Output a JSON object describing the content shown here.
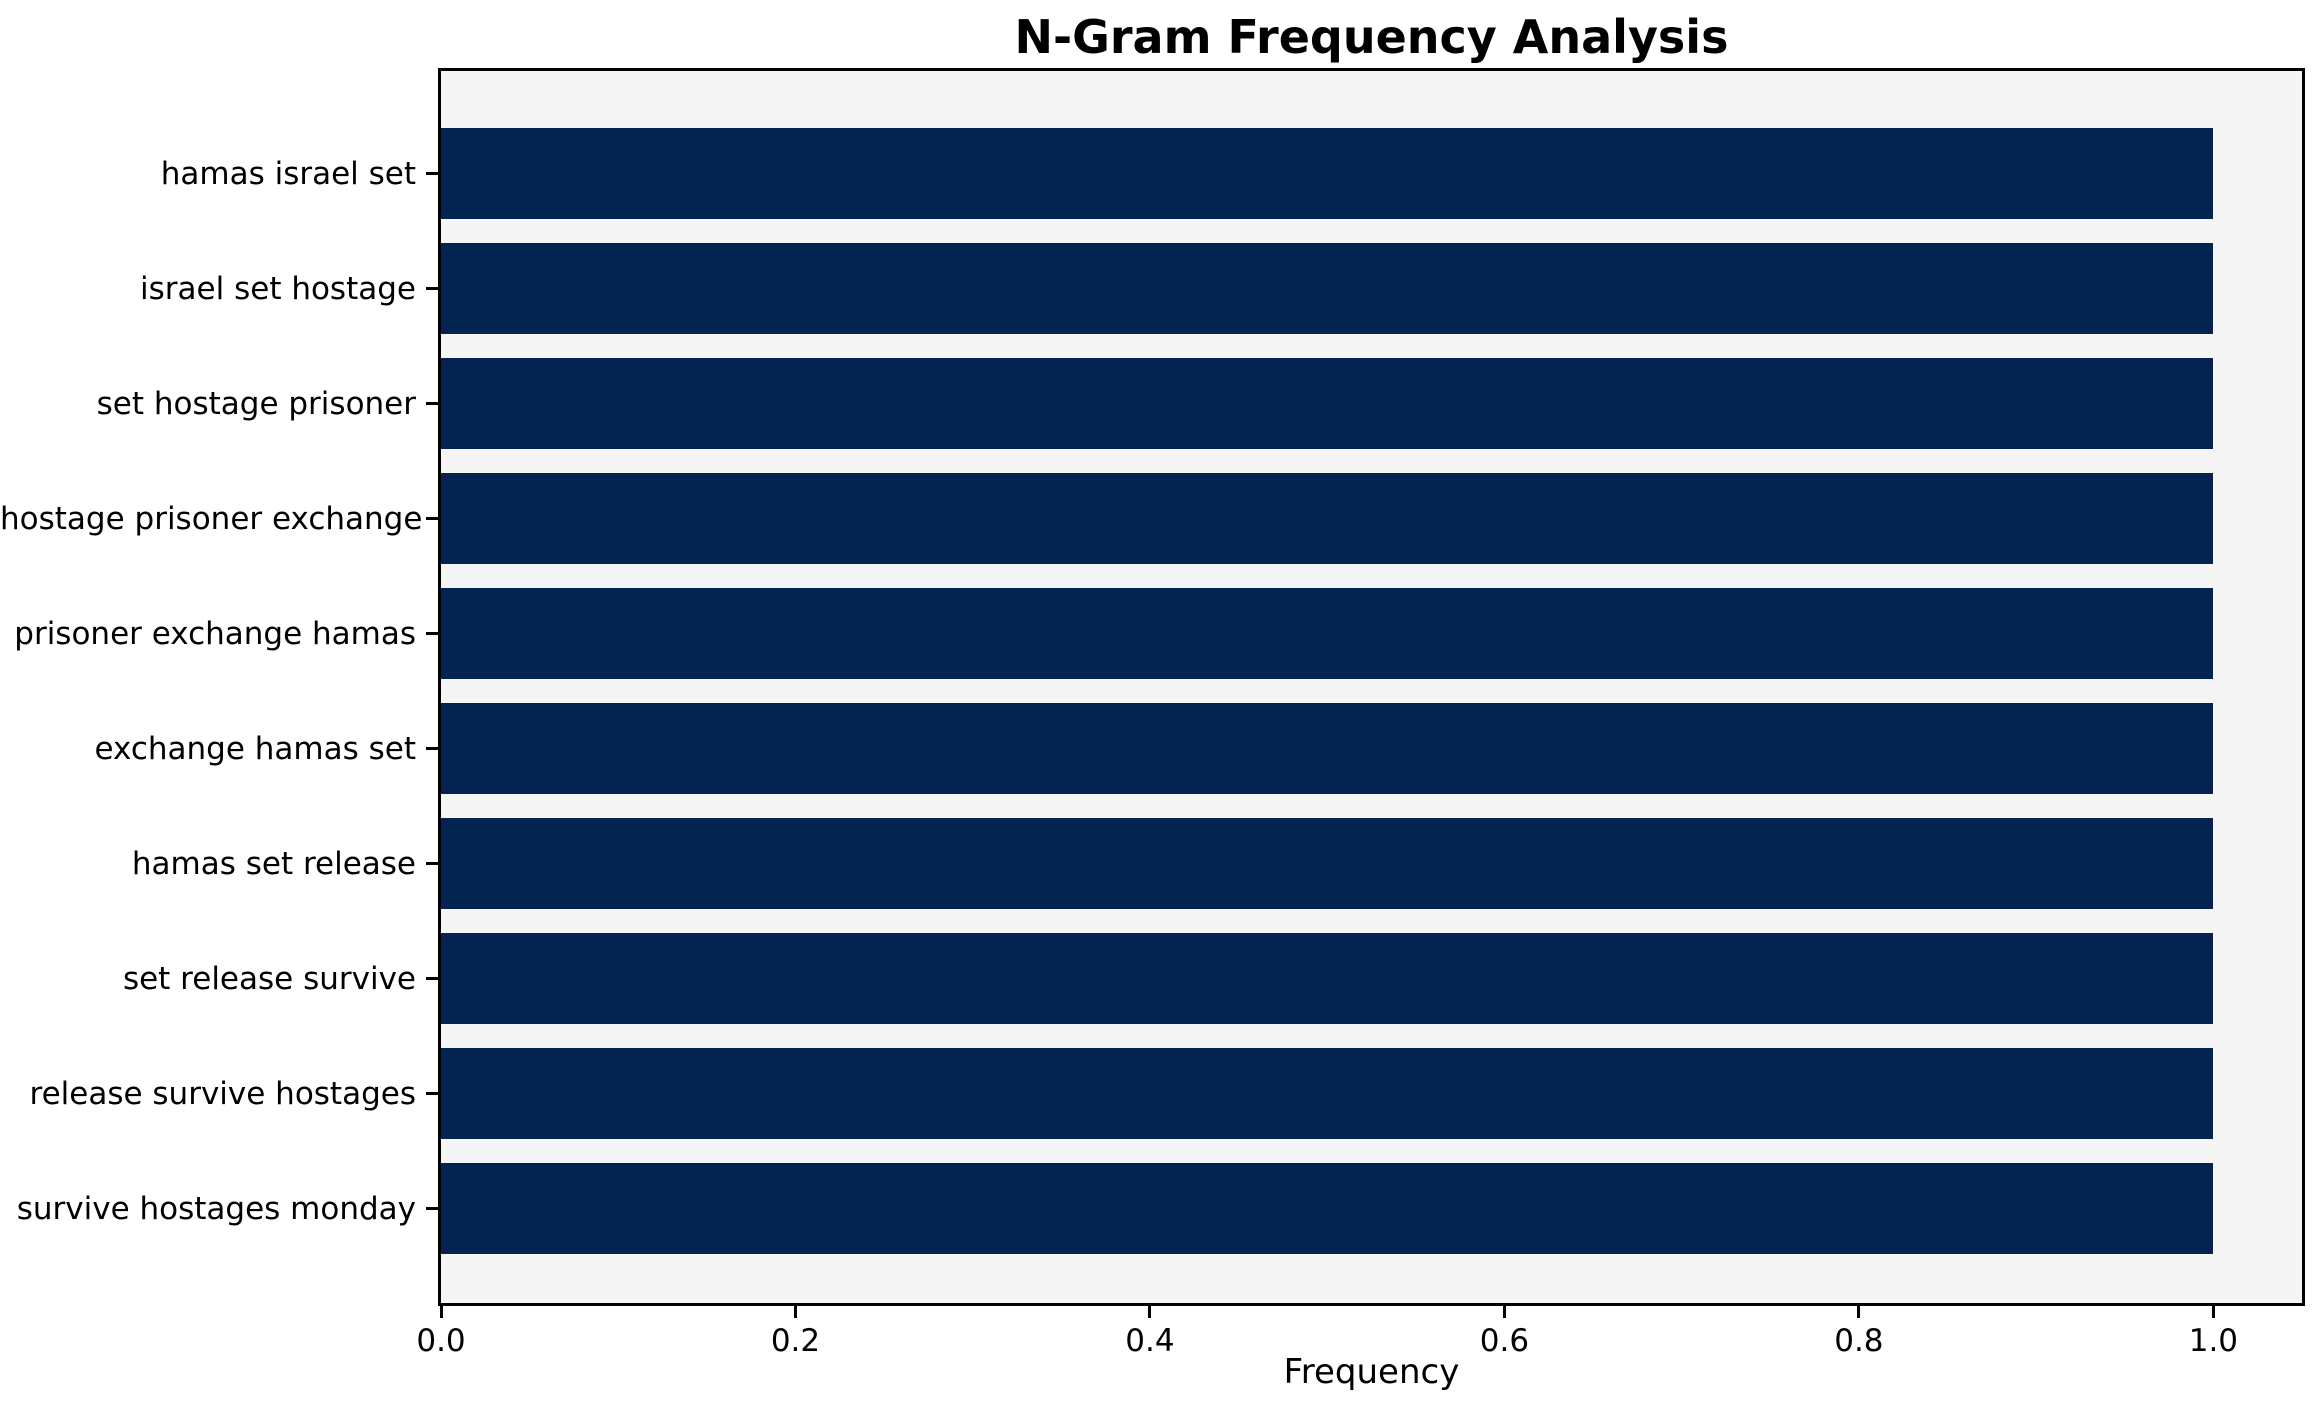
{
  "title": "N-Gram Frequency Analysis",
  "chart_data": {
    "type": "bar",
    "orientation": "horizontal",
    "title": "N-Gram Frequency Analysis",
    "xlabel": "Frequency",
    "ylabel": "",
    "categories": [
      "hamas israel set",
      "israel set hostage",
      "set hostage prisoner",
      "hostage prisoner exchange",
      "prisoner exchange hamas",
      "exchange hamas set",
      "hamas set release",
      "set release survive",
      "release survive hostages",
      "survive hostages monday"
    ],
    "values": [
      1.0,
      1.0,
      1.0,
      1.0,
      1.0,
      1.0,
      1.0,
      1.0,
      1.0,
      1.0
    ],
    "xlim": [
      0,
      1.05
    ],
    "xticks": [
      0.0,
      0.2,
      0.4,
      0.6,
      0.8,
      1.0
    ],
    "xtick_labels": [
      "0.0",
      "0.2",
      "0.4",
      "0.6",
      "0.8",
      "1.0"
    ],
    "grid": false,
    "legend_position": "none",
    "bar_color": "#032450",
    "plot_bg_color": "#f5f5f6",
    "figure_bg_color": "#ffffff",
    "spine_color": "#000000"
  }
}
